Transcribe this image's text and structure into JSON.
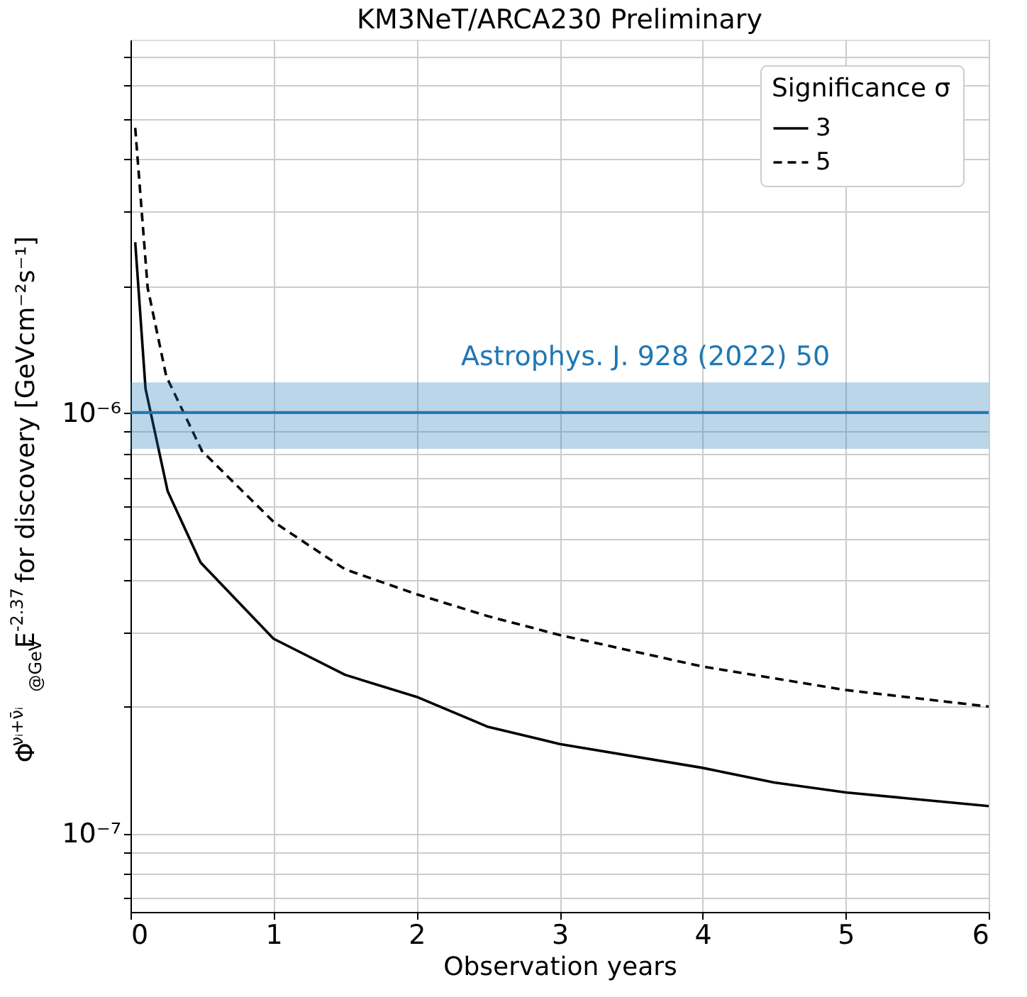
{
  "chart_data": {
    "type": "line",
    "title": "KM3NeT/ARCA230 Preliminary",
    "xlabel": "Observation years",
    "ylabel": "Φ$^{νᵢ+ν̄ᵢ}$$_{@GeV}$E$^{-2.37}$ for discovery [GeVcm⁻²s⁻¹]",
    "legend_title": "Significance σ",
    "legend": "top right",
    "grid": true,
    "log": "y",
    "xlim": [
      0,
      6
    ],
    "xticks": [
      0,
      1,
      2,
      3,
      4,
      5,
      6
    ],
    "ylim": [
      6.5e-08,
      7.7e-06
    ],
    "yticks": [
      {
        "value": 7e-08,
        "label": null
      },
      {
        "value": 8e-08,
        "label": null
      },
      {
        "value": 9e-08,
        "label": null
      },
      {
        "value": 1e-07,
        "label": "10⁻⁷"
      },
      {
        "value": 2e-07,
        "label": null
      },
      {
        "value": 3e-07,
        "label": null
      },
      {
        "value": 4e-07,
        "label": null
      },
      {
        "value": 5e-07,
        "label": null
      },
      {
        "value": 6e-07,
        "label": null
      },
      {
        "value": 7e-07,
        "label": null
      },
      {
        "value": 8e-07,
        "label": null
      },
      {
        "value": 9e-07,
        "label": null
      },
      {
        "value": 1e-06,
        "label": "10⁻⁶"
      },
      {
        "value": 2e-06,
        "label": null
      },
      {
        "value": 3e-06,
        "label": null
      },
      {
        "value": 4e-06,
        "label": null
      },
      {
        "value": 5e-06,
        "label": null
      },
      {
        "value": 6e-06,
        "label": null
      },
      {
        "value": 7e-06,
        "label": null
      }
    ],
    "series": [
      {
        "name": "3",
        "color": "#000000",
        "line_style": "solid",
        "x": [
          0.033,
          0.105,
          0.26,
          0.49,
          1,
          1.5,
          2,
          2.5,
          3,
          4,
          4.5,
          5,
          6
        ],
        "values": [
          2.54e-06,
          1.14e-06,
          6.5e-07,
          4.4e-07,
          2.9e-07,
          2.38e-07,
          2.11e-07,
          1.79e-07,
          1.63e-07,
          1.43e-07,
          1.32e-07,
          1.25e-07,
          1.16e-07
        ]
      },
      {
        "name": "5",
        "color": "#000000",
        "line_style": "dashed",
        "x": [
          0.033,
          0.12,
          0.25,
          0.5,
          1,
          1.5,
          2,
          2.5,
          3,
          4,
          5,
          6
        ],
        "values": [
          4.75e-06,
          1.98e-06,
          1.22e-06,
          8.1e-07,
          5.5e-07,
          4.24e-07,
          3.7e-07,
          3.28e-07,
          2.96e-07,
          2.49e-07,
          2.19e-07,
          2e-07
        ]
      }
    ],
    "ref_lines": [
      {
        "axis": "y",
        "value": 1e-06,
        "color": "#1f77b4",
        "line_style": "solid"
      }
    ],
    "bands": [
      {
        "axis": "y",
        "from": 8.2e-07,
        "to": 1.18e-06,
        "color": "#1f77b4",
        "label": "Astrophys. J. 928 (2022) 50"
      }
    ]
  }
}
